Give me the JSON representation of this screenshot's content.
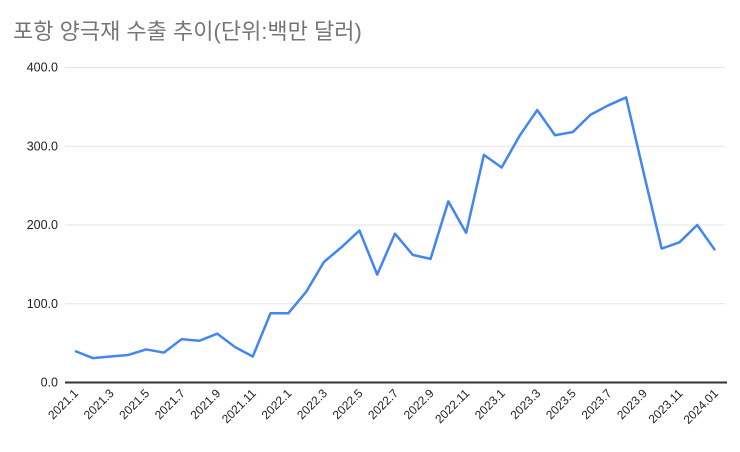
{
  "chart_data": {
    "type": "line",
    "title": "포항 양극재 수출 추이(단위:백만 달러)",
    "categories": [
      "2021.1",
      "2021.2",
      "2021.3",
      "2021.4",
      "2021.5",
      "2021.6",
      "2021.7",
      "2021.8",
      "2021.9",
      "2021.10",
      "2021.11",
      "2021.12",
      "2022.1",
      "2022.2",
      "2022.3",
      "2022.4",
      "2022.5",
      "2022.6",
      "2022.7",
      "2022.8",
      "2022.9",
      "2022.10",
      "2022.11",
      "2022.12",
      "2023.1",
      "2023.2",
      "2023.3",
      "2023.4",
      "2023.5",
      "2023.6",
      "2023.7",
      "2023.8",
      "2023.9",
      "2023.10",
      "2023.11",
      "2023.12",
      "2024.01"
    ],
    "values": [
      40,
      31,
      33,
      35,
      42,
      38,
      55,
      53,
      62,
      45,
      33,
      88,
      88,
      115,
      153,
      172,
      193,
      137,
      189,
      162,
      157,
      230,
      190,
      289,
      273,
      313,
      346,
      314,
      318,
      340,
      352,
      362,
      265,
      170,
      178,
      200,
      168
    ],
    "xlabel": "",
    "ylabel": "",
    "ylim": [
      0,
      400
    ],
    "yticks": [
      0,
      100,
      200,
      300,
      400
    ],
    "ytick_decimals": 1,
    "x_label_step": 2,
    "x_label_rotation": -45,
    "grid": true,
    "legend": "none",
    "colors": {
      "line": "#4285f4",
      "title": "#757575",
      "gridline": "#e3e3e3",
      "axis_line": "#333333",
      "tick_label": "#222222",
      "background": "#ffffff"
    }
  }
}
